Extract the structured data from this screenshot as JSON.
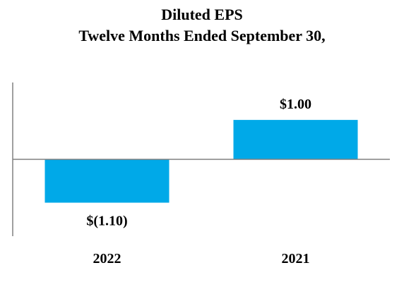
{
  "chart_data": {
    "type": "bar",
    "title": "Diluted EPS",
    "subtitle": "Twelve Months Ended September 30,",
    "categories": [
      "2022",
      "2021"
    ],
    "values": [
      -1.1,
      1.0
    ],
    "data_labels": [
      "$(1.10)",
      "$1.00"
    ],
    "ylim": [
      -1.95,
      1.95
    ],
    "bar_color": "#00A9E8",
    "axis_color": "#808080",
    "grid": false,
    "legend": "none"
  }
}
